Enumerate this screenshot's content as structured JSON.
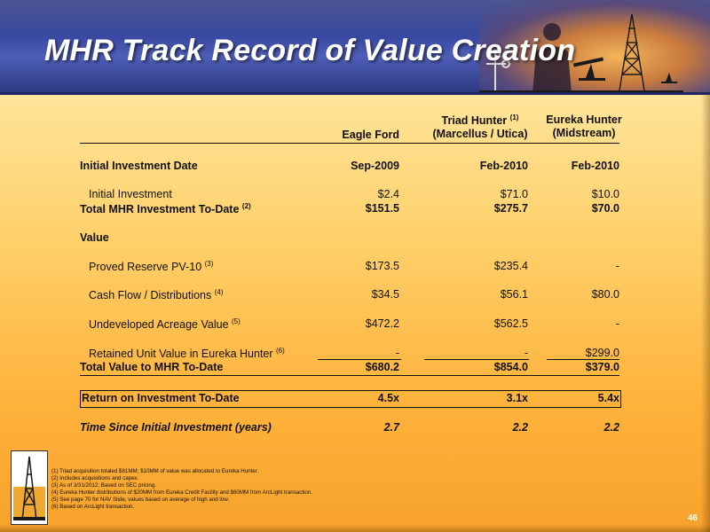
{
  "title": "MHR Track Record of Value Creation",
  "columns": {
    "c1": {
      "line1": "",
      "line2": "Eagle Ford"
    },
    "c2": {
      "line1": "Triad Hunter",
      "line1_sup": "(1)",
      "line2": "(Marcellus / Utica)"
    },
    "c3": {
      "line1": "Eureka Hunter",
      "line2": "(Midstream)"
    }
  },
  "rows": {
    "initial_date": {
      "label": "Initial Investment Date",
      "c1": "Sep-2009",
      "c2": "Feb-2010",
      "c3": "Feb-2010"
    },
    "initial_investment": {
      "label": "Initial Investment",
      "c1": "$2.4",
      "c2": "$71.0",
      "c3": "$10.0"
    },
    "total_investment": {
      "label": "Total MHR Investment To-Date",
      "sup": "(2)",
      "c1": "$151.5",
      "c2": "$275.7",
      "c3": "$70.0"
    },
    "value_header": {
      "label": "Value"
    },
    "proved_reserve": {
      "label": "Proved Reserve PV-10",
      "sup": "(3)",
      "c1": "$173.5",
      "c2": "$235.4",
      "c3": "-"
    },
    "cash_flow": {
      "label": "Cash Flow / Distributions",
      "sup": "(4)",
      "c1": "$34.5",
      "c2": "$56.1",
      "c3": "$80.0"
    },
    "undeveloped": {
      "label": "Undeveloped Acreage Value",
      "sup": "(5)",
      "c1": "$472.2",
      "c2": "$562.5",
      "c3": "-"
    },
    "retained": {
      "label": "Retained Unit Value in Eureka Hunter",
      "sup": "(6)",
      "c1": "-",
      "c2": "-",
      "c3": "$299.0"
    },
    "total_value": {
      "label": "Total Value to MHR To-Date",
      "c1": "$680.2",
      "c2": "$854.0",
      "c3": "$379.0"
    },
    "roi": {
      "label": "Return on Investment To-Date",
      "c1": "4.5x",
      "c2": "3.1x",
      "c3": "5.4x"
    },
    "time_since": {
      "label": "Time Since Initial Investment (years)",
      "c1": "2.7",
      "c2": "2.2",
      "c3": "2.2"
    }
  },
  "footnotes": [
    "(1) Triad acquisition totaled $81MM; $10MM of value was allocated to Eureka Hunter.",
    "(2) Includes acquisitions and capex.",
    "(3) As of 3/31/2012; Based on SEC pricing.",
    "(4) Eureka Hunter distributions of $20MM from Eureka Credit Facility and $60MM from ArcLight transaction.",
    "(5) See  page 70 for NAV Slide, values based on average of high and low.",
    "(6) Based on ArcLight transaction."
  ],
  "page_number": "46",
  "colors": {
    "header_blue": "#3a4aa3",
    "background_orange": "#ffb33c"
  }
}
